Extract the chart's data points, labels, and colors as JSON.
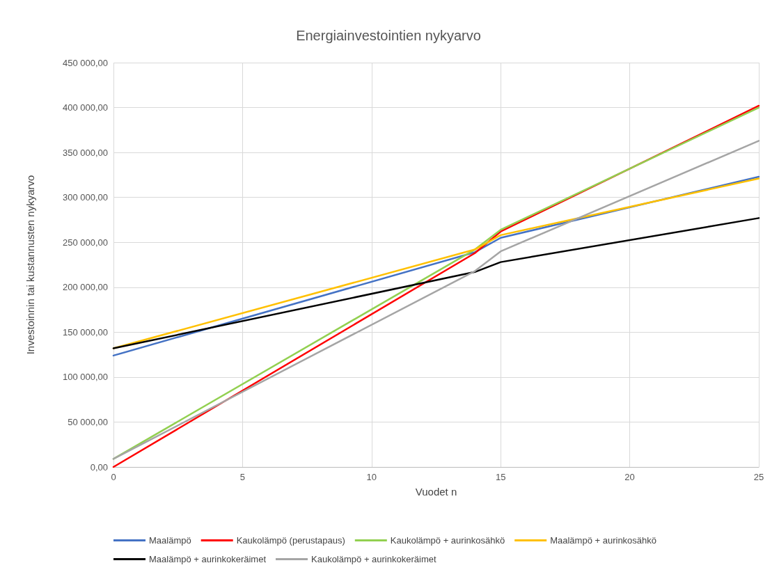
{
  "chart_data": {
    "type": "line",
    "title": "Energiainvestointien nykyarvo",
    "xlabel": "Vuodet n",
    "ylabel": "Investoinnin tai kustannusten nykyarvo",
    "xlim": [
      0,
      25
    ],
    "xticks": [
      0,
      5,
      10,
      15,
      20,
      25
    ],
    "ylim": [
      0,
      450000
    ],
    "yticks": [
      {
        "value": 0,
        "label": "0,00"
      },
      {
        "value": 50000,
        "label": "50 000,00"
      },
      {
        "value": 100000,
        "label": "100 000,00"
      },
      {
        "value": 150000,
        "label": "150 000,00"
      },
      {
        "value": 200000,
        "label": "200 000,00"
      },
      {
        "value": 250000,
        "label": "250 000,00"
      },
      {
        "value": 300000,
        "label": "300 000,00"
      },
      {
        "value": 350000,
        "label": "350 000,00"
      },
      {
        "value": 400000,
        "label": "400 000,00"
      },
      {
        "value": 450000,
        "label": "450 000,00"
      }
    ],
    "x": [
      0,
      14,
      15,
      25
    ],
    "series": [
      {
        "name": "Maalämpö",
        "color": "#4472c4",
        "values": [
          124000,
          239000,
          255000,
          323000
        ]
      },
      {
        "name": "Kaukolämpö (perustapaus)",
        "color": "#ff0000",
        "values": [
          0,
          238000,
          262000,
          402000
        ]
      },
      {
        "name": "Kaukolämpö + aurinkosähkö",
        "color": "#92d050",
        "values": [
          9000,
          242000,
          264000,
          400000
        ]
      },
      {
        "name": "Maalämpö + aurinkosähkö",
        "color": "#ffc000",
        "values": [
          132000,
          242000,
          258000,
          321000
        ]
      },
      {
        "name": "Maalämpö + aurinkokeräimet",
        "color": "#000000",
        "values": [
          132000,
          217000,
          228000,
          277000
        ]
      },
      {
        "name": "Kaukolämpö + aurinkokeräimet",
        "color": "#a5a5a5",
        "values": [
          9000,
          218000,
          240000,
          363000
        ]
      }
    ],
    "grid": true,
    "legend": "bottom",
    "marker": "none",
    "line_style": "solid"
  }
}
